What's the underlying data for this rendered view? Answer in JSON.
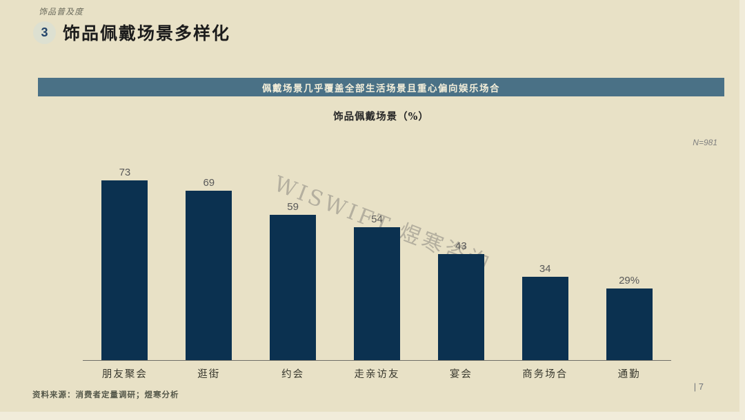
{
  "colors": {
    "background": "#e8e1c6",
    "banner": "#4a7186",
    "banner_text": "#f3eed9",
    "bar": "#0b3150",
    "value_label": "#595959",
    "badge_bg": "#dde0d1",
    "badge_text": "#24456b",
    "watermark_gray": "#76746e"
  },
  "header": {
    "eyebrow": "饰品普及度",
    "section_number": "3",
    "title": "饰品佩戴场景多样化"
  },
  "banner": {
    "text": "佩戴场景几乎覆盖全部生活场景且重心偏向娱乐场合"
  },
  "chart": {
    "title": "饰品佩戴场景（%）",
    "sample_note": "N=981"
  },
  "watermark": "WISWIFT 煜寒咨询",
  "chart_data": {
    "type": "bar",
    "title": "饰品佩戴场景（%）",
    "categories": [
      "朋友聚会",
      "逛街",
      "约会",
      "走亲访友",
      "宴会",
      "商务场合",
      "通勤"
    ],
    "values": [
      73,
      69,
      59,
      54,
      43,
      34,
      29
    ],
    "value_labels": [
      "73",
      "69",
      "59",
      "54",
      "43",
      "34",
      "29%"
    ],
    "xlabel": "",
    "ylabel": "",
    "ylim": [
      0,
      84
    ],
    "unit": "%",
    "grid": false,
    "legend": false,
    "bar_color": "#0b3150",
    "sample_size": "N=981"
  },
  "footer": {
    "source": "资料来源：消费者定量调研；煜寒分析",
    "page": "| 7"
  }
}
